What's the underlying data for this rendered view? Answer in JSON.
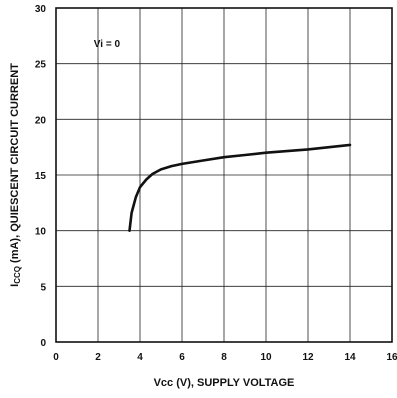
{
  "chart_data": {
    "type": "line",
    "xlabel": "Vcc (V), SUPPLY VOLTAGE",
    "ylabel": "I_CCQ (mA), QUIESCENT CIRCUIT CURRENT",
    "ylabel_parts": {
      "sym": "I",
      "sub": "CCQ",
      "rest": " (mA), QUIESCENT CIRCUIT CURRENT"
    },
    "xlim": [
      0,
      16
    ],
    "ylim": [
      0,
      30
    ],
    "xticks": [
      0,
      2,
      4,
      6,
      8,
      10,
      12,
      14,
      16
    ],
    "yticks": [
      0,
      5,
      10,
      15,
      20,
      25,
      30
    ],
    "grid": true,
    "annotation": {
      "text": "Vi = 0",
      "x": 1.8,
      "y": 26.5
    },
    "series": [
      {
        "x": [
          3.5,
          3.6,
          3.8,
          4.0,
          4.3,
          4.6,
          5.0,
          5.5,
          6.0,
          7.0,
          8.0,
          9.0,
          10.0,
          11.0,
          12.0,
          13.0,
          14.0
        ],
        "y": [
          10.0,
          11.6,
          13.0,
          13.9,
          14.6,
          15.1,
          15.5,
          15.8,
          16.0,
          16.3,
          16.6,
          16.8,
          17.0,
          17.15,
          17.3,
          17.5,
          17.7
        ]
      }
    ]
  }
}
